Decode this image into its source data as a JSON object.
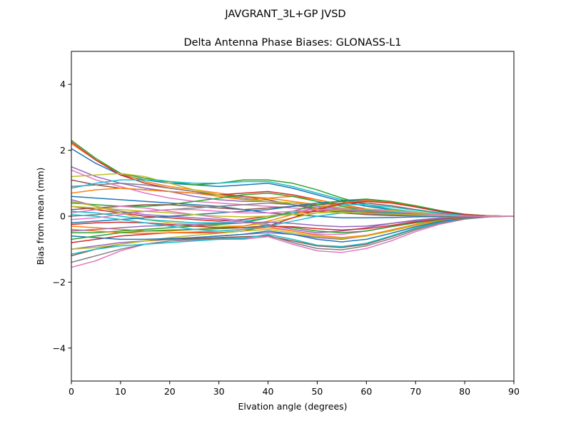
{
  "figure": {
    "suptitle": "JAVGRANT_3L+GP  JVSD"
  },
  "chart_data": {
    "type": "line",
    "title": "Delta Antenna Phase Biases: GLONASS-L1",
    "xlabel": "Elvation angle (degrees)",
    "ylabel": "Bias from mean (mm)",
    "xlim": [
      0,
      90
    ],
    "ylim": [
      -5,
      5
    ],
    "xticks": [
      0,
      10,
      20,
      30,
      40,
      50,
      60,
      70,
      80,
      90
    ],
    "xtick_labels": [
      "0",
      "10",
      "20",
      "30",
      "40",
      "50",
      "60",
      "70",
      "80",
      "90"
    ],
    "yticks": [
      -4,
      -2,
      0,
      2,
      4
    ],
    "ytick_labels": [
      "−4",
      "−2",
      "0",
      "2",
      "4"
    ],
    "grid": false,
    "legend": "none",
    "x": [
      0,
      5,
      10,
      15,
      20,
      25,
      30,
      35,
      40,
      45,
      50,
      55,
      60,
      65,
      70,
      75,
      80,
      85,
      90
    ],
    "series": [
      {
        "color": "#1f77b4",
        "values": [
          2.05,
          1.6,
          1.25,
          1.1,
          1.0,
          0.95,
          0.9,
          0.95,
          1.0,
          0.85,
          0.65,
          0.45,
          0.3,
          0.2,
          0.12,
          0.06,
          0.02,
          0.0,
          0.0
        ]
      },
      {
        "color": "#ff7f0e",
        "values": [
          2.2,
          1.7,
          1.3,
          1.05,
          0.9,
          0.8,
          0.7,
          0.6,
          0.55,
          0.45,
          0.35,
          0.25,
          0.18,
          0.12,
          0.08,
          0.04,
          0.02,
          0.0,
          0.0
        ]
      },
      {
        "color": "#2ca02c",
        "values": [
          2.3,
          1.75,
          1.3,
          1.15,
          1.05,
          0.95,
          1.0,
          1.1,
          1.1,
          1.0,
          0.8,
          0.55,
          0.35,
          0.22,
          0.12,
          0.06,
          0.02,
          0.0,
          0.0
        ]
      },
      {
        "color": "#d62728",
        "values": [
          2.25,
          1.7,
          1.25,
          1.0,
          0.85,
          0.75,
          0.65,
          0.7,
          0.75,
          0.65,
          0.5,
          0.35,
          0.22,
          0.13,
          0.07,
          0.03,
          0.01,
          0.0,
          0.0
        ]
      },
      {
        "color": "#9467bd",
        "values": [
          1.5,
          1.2,
          1.0,
          0.85,
          0.75,
          0.6,
          0.5,
          0.45,
          0.45,
          0.4,
          0.3,
          0.22,
          0.15,
          0.1,
          0.06,
          0.03,
          0.01,
          0.0,
          0.0
        ]
      },
      {
        "color": "#8c564b",
        "values": [
          1.1,
          0.95,
          0.85,
          0.8,
          0.75,
          0.7,
          0.65,
          0.6,
          0.5,
          0.35,
          0.2,
          0.1,
          0.05,
          0.02,
          0.01,
          0.0,
          0.0,
          0.0,
          0.0
        ]
      },
      {
        "color": "#e377c2",
        "values": [
          1.4,
          1.1,
          0.9,
          0.7,
          0.55,
          0.45,
          0.4,
          0.35,
          0.3,
          0.25,
          0.2,
          0.15,
          0.1,
          0.07,
          0.04,
          0.02,
          0.01,
          0.0,
          0.0
        ]
      },
      {
        "color": "#7f7f7f",
        "values": [
          0.9,
          0.95,
          1.0,
          0.95,
          0.85,
          0.75,
          0.65,
          0.55,
          0.45,
          0.35,
          0.25,
          0.18,
          0.12,
          0.08,
          0.05,
          0.02,
          0.01,
          0.0,
          0.0
        ]
      },
      {
        "color": "#bcbd22",
        "values": [
          1.2,
          1.25,
          1.3,
          1.2,
          1.0,
          0.8,
          0.65,
          0.5,
          0.45,
          0.4,
          0.35,
          0.25,
          0.18,
          0.1,
          0.05,
          0.02,
          0.01,
          0.0,
          0.0
        ]
      },
      {
        "color": "#17becf",
        "values": [
          0.85,
          1.0,
          1.1,
          1.1,
          1.05,
          1.0,
          1.0,
          1.05,
          1.05,
          0.9,
          0.7,
          0.5,
          0.35,
          0.22,
          0.13,
          0.06,
          0.02,
          0.0,
          0.0
        ]
      },
      {
        "color": "#1f77b4",
        "values": [
          0.6,
          0.55,
          0.5,
          0.45,
          0.4,
          0.35,
          0.3,
          0.2,
          0.1,
          0.05,
          0.0,
          -0.05,
          -0.05,
          -0.04,
          -0.02,
          -0.01,
          0.0,
          0.0,
          0.0
        ]
      },
      {
        "color": "#ff7f0e",
        "values": [
          0.7,
          0.8,
          0.85,
          0.8,
          0.75,
          0.7,
          0.6,
          0.5,
          0.55,
          0.6,
          0.5,
          0.35,
          0.2,
          0.1,
          0.05,
          0.02,
          0.01,
          0.0,
          0.0
        ]
      },
      {
        "color": "#2ca02c",
        "values": [
          0.4,
          0.35,
          0.3,
          0.3,
          0.35,
          0.45,
          0.55,
          0.65,
          0.7,
          0.6,
          0.45,
          0.3,
          0.18,
          0.1,
          0.05,
          0.02,
          0.01,
          0.0,
          0.0
        ]
      },
      {
        "color": "#d62728",
        "values": [
          0.3,
          0.2,
          0.1,
          0.0,
          -0.05,
          -0.1,
          -0.15,
          -0.1,
          0.0,
          0.1,
          0.15,
          0.15,
          0.12,
          0.08,
          0.05,
          0.02,
          0.01,
          0.0,
          0.0
        ]
      },
      {
        "color": "#9467bd",
        "values": [
          0.5,
          0.3,
          0.15,
          0.05,
          0.0,
          -0.05,
          -0.1,
          -0.15,
          -0.25,
          -0.4,
          -0.5,
          -0.45,
          -0.35,
          -0.22,
          -0.12,
          -0.05,
          -0.02,
          0.0,
          0.0
        ]
      },
      {
        "color": "#8c564b",
        "values": [
          0.2,
          0.25,
          0.3,
          0.35,
          0.35,
          0.3,
          0.25,
          0.2,
          0.25,
          0.3,
          0.35,
          0.4,
          0.4,
          0.32,
          0.2,
          0.1,
          0.04,
          0.01,
          0.0
        ]
      },
      {
        "color": "#e377c2",
        "values": [
          0.1,
          0.2,
          0.3,
          0.25,
          0.15,
          0.05,
          -0.05,
          -0.15,
          -0.3,
          -0.45,
          -0.55,
          -0.55,
          -0.45,
          -0.3,
          -0.18,
          -0.08,
          -0.03,
          0.0,
          0.0
        ]
      },
      {
        "color": "#7f7f7f",
        "values": [
          0.0,
          0.05,
          0.1,
          0.15,
          0.2,
          0.25,
          0.3,
          0.35,
          0.4,
          0.35,
          0.25,
          0.15,
          0.08,
          0.04,
          0.02,
          0.01,
          0.0,
          0.0,
          0.0
        ]
      },
      {
        "color": "#bcbd22",
        "values": [
          0.45,
          0.3,
          0.1,
          -0.1,
          -0.2,
          -0.25,
          -0.3,
          -0.3,
          -0.2,
          -0.05,
          0.1,
          0.2,
          0.22,
          0.18,
          0.12,
          0.06,
          0.02,
          0.0,
          0.0
        ]
      },
      {
        "color": "#17becf",
        "values": [
          0.15,
          0.1,
          0.0,
          -0.1,
          -0.15,
          -0.2,
          -0.2,
          -0.15,
          -0.05,
          0.1,
          0.25,
          0.35,
          0.35,
          0.28,
          0.18,
          0.09,
          0.03,
          0.01,
          0.0
        ]
      },
      {
        "color": "#1f77b4",
        "values": [
          -0.2,
          -0.15,
          -0.1,
          -0.05,
          0.0,
          0.05,
          0.1,
          0.15,
          0.2,
          0.3,
          0.4,
          0.45,
          0.5,
          0.42,
          0.28,
          0.14,
          0.05,
          0.01,
          0.0
        ]
      },
      {
        "color": "#ff7f0e",
        "values": [
          -0.3,
          -0.35,
          -0.4,
          -0.45,
          -0.45,
          -0.4,
          -0.35,
          -0.3,
          -0.15,
          0.05,
          0.25,
          0.4,
          0.48,
          0.42,
          0.3,
          0.16,
          0.06,
          0.01,
          0.0
        ]
      },
      {
        "color": "#2ca02c",
        "values": [
          -0.5,
          -0.5,
          -0.45,
          -0.4,
          -0.35,
          -0.3,
          -0.25,
          -0.2,
          -0.05,
          0.15,
          0.35,
          0.48,
          0.52,
          0.45,
          0.32,
          0.17,
          0.06,
          0.01,
          0.0
        ]
      },
      {
        "color": "#d62728",
        "values": [
          -0.8,
          -0.7,
          -0.6,
          -0.55,
          -0.5,
          -0.5,
          -0.5,
          -0.45,
          -0.3,
          -0.05,
          0.2,
          0.38,
          0.45,
          0.4,
          0.28,
          0.15,
          0.05,
          0.01,
          0.0
        ]
      },
      {
        "color": "#9467bd",
        "values": [
          -1.0,
          -0.9,
          -0.8,
          -0.75,
          -0.7,
          -0.65,
          -0.6,
          -0.55,
          -0.5,
          -0.55,
          -0.65,
          -0.7,
          -0.6,
          -0.42,
          -0.25,
          -0.12,
          -0.04,
          -0.01,
          0.0
        ]
      },
      {
        "color": "#8c564b",
        "values": [
          -1.2,
          -1.0,
          -0.85,
          -0.75,
          -0.7,
          -0.68,
          -0.65,
          -0.62,
          -0.6,
          -0.75,
          -0.9,
          -0.95,
          -0.85,
          -0.62,
          -0.38,
          -0.18,
          -0.06,
          -0.01,
          0.0
        ]
      },
      {
        "color": "#e377c2",
        "values": [
          -1.55,
          -1.35,
          -1.05,
          -0.85,
          -0.75,
          -0.72,
          -0.7,
          -0.7,
          -0.62,
          -0.85,
          -1.05,
          -1.1,
          -0.98,
          -0.75,
          -0.47,
          -0.24,
          -0.09,
          -0.02,
          0.0
        ]
      },
      {
        "color": "#7f7f7f",
        "values": [
          -1.4,
          -1.2,
          -1.0,
          -0.85,
          -0.75,
          -0.7,
          -0.68,
          -0.66,
          -0.58,
          -0.8,
          -0.98,
          -1.02,
          -0.9,
          -0.68,
          -0.42,
          -0.21,
          -0.08,
          -0.02,
          0.0
        ]
      },
      {
        "color": "#bcbd22",
        "values": [
          -1.0,
          -0.95,
          -0.85,
          -0.75,
          -0.65,
          -0.58,
          -0.52,
          -0.45,
          -0.4,
          -0.5,
          -0.62,
          -0.68,
          -0.6,
          -0.45,
          -0.28,
          -0.14,
          -0.05,
          -0.01,
          0.0
        ]
      },
      {
        "color": "#17becf",
        "values": [
          -1.15,
          -1.0,
          -0.9,
          -0.85,
          -0.8,
          -0.75,
          -0.7,
          -0.68,
          -0.55,
          -0.7,
          -0.88,
          -0.92,
          -0.82,
          -0.6,
          -0.36,
          -0.18,
          -0.06,
          -0.01,
          0.0
        ]
      },
      {
        "color": "#1f77b4",
        "values": [
          -0.6,
          -0.65,
          -0.7,
          -0.7,
          -0.68,
          -0.65,
          -0.6,
          -0.55,
          -0.45,
          -0.55,
          -0.7,
          -0.78,
          -0.7,
          -0.52,
          -0.32,
          -0.16,
          -0.05,
          -0.01,
          0.0
        ]
      },
      {
        "color": "#ff7f0e",
        "values": [
          -0.4,
          -0.45,
          -0.5,
          -0.52,
          -0.5,
          -0.48,
          -0.45,
          -0.4,
          -0.35,
          -0.45,
          -0.58,
          -0.65,
          -0.58,
          -0.42,
          -0.25,
          -0.12,
          -0.04,
          -0.01,
          0.0
        ]
      },
      {
        "color": "#2ca02c",
        "values": [
          -0.7,
          -0.6,
          -0.5,
          -0.45,
          -0.42,
          -0.4,
          -0.38,
          -0.35,
          -0.28,
          -0.35,
          -0.45,
          -0.5,
          -0.45,
          -0.32,
          -0.2,
          -0.1,
          -0.03,
          0.0,
          0.0
        ]
      },
      {
        "color": "#d62728",
        "values": [
          -0.25,
          -0.2,
          -0.18,
          -0.2,
          -0.25,
          -0.3,
          -0.35,
          -0.35,
          -0.3,
          -0.32,
          -0.38,
          -0.42,
          -0.38,
          -0.28,
          -0.17,
          -0.08,
          -0.03,
          0.0,
          0.0
        ]
      },
      {
        "color": "#9467bd",
        "values": [
          -0.45,
          -0.4,
          -0.35,
          -0.3,
          -0.28,
          -0.25,
          -0.22,
          -0.2,
          -0.18,
          -0.22,
          -0.28,
          -0.32,
          -0.3,
          -0.22,
          -0.14,
          -0.07,
          -0.02,
          0.0,
          0.0
        ]
      },
      {
        "color": "#17becf",
        "values": [
          0.05,
          0.0,
          -0.1,
          -0.2,
          -0.3,
          -0.4,
          -0.45,
          -0.4,
          -0.3,
          -0.15,
          0.0,
          0.1,
          0.15,
          0.12,
          0.08,
          0.04,
          0.01,
          0.0,
          0.0
        ]
      },
      {
        "color": "#bcbd22",
        "values": [
          0.3,
          0.25,
          0.2,
          0.15,
          0.1,
          0.05,
          0.0,
          -0.02,
          0.0,
          0.05,
          0.1,
          0.12,
          0.1,
          0.07,
          0.04,
          0.02,
          0.01,
          0.0,
          0.0
        ]
      },
      {
        "color": "#e377c2",
        "values": [
          -0.1,
          -0.05,
          0.05,
          0.15,
          0.2,
          0.2,
          0.15,
          0.1,
          0.1,
          0.15,
          0.2,
          0.22,
          0.2,
          0.15,
          0.09,
          0.04,
          0.01,
          0.0,
          0.0
        ]
      }
    ]
  }
}
